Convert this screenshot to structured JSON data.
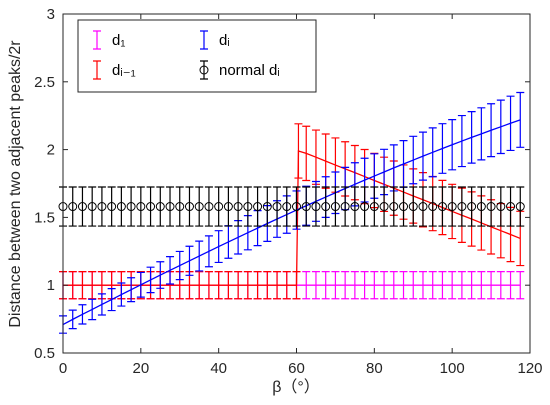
{
  "chart_data": {
    "type": "line",
    "xlabel": "β（°）",
    "ylabel": "Distance between two adjacent peaks/2r",
    "xlim": [
      0,
      120
    ],
    "ylim": [
      0.5,
      3
    ],
    "xticks": [
      "0",
      "20",
      "40",
      "60",
      "80",
      "100",
      "120"
    ],
    "yticks": [
      "0.5",
      "1",
      "1.5",
      "2",
      "2.5",
      "3"
    ],
    "grid": false,
    "legend": "top-left",
    "series": [
      {
        "name": "d₁",
        "color": "#ff00ff",
        "marker": "none",
        "x": [
          0,
          2.5,
          5,
          7.5,
          10,
          12.5,
          15,
          17.5,
          20,
          22.5,
          25,
          27.5,
          30,
          32.5,
          35,
          37.5,
          40,
          42.5,
          45,
          47.5,
          50,
          52.5,
          55,
          57.5,
          60,
          62.5,
          65,
          67.5,
          70,
          72.5,
          75,
          77.5,
          80,
          82.5,
          85,
          87.5,
          90,
          92.5,
          95,
          97.5,
          100,
          102.5,
          105,
          107.5,
          110,
          112.5,
          115,
          117.5
        ],
        "y": [
          1,
          1,
          1,
          1,
          1,
          1,
          1,
          1,
          1,
          1,
          1,
          1,
          1,
          1,
          1,
          1,
          1,
          1,
          1,
          1,
          1,
          1,
          1,
          1,
          1,
          1,
          1,
          1,
          1,
          1,
          1,
          1,
          1,
          1,
          1,
          1,
          1,
          1,
          1,
          1,
          1,
          1,
          1,
          1,
          1,
          1,
          1,
          1
        ],
        "err": [
          0.1,
          0.1,
          0.1,
          0.1,
          0.1,
          0.1,
          0.1,
          0.1,
          0.1,
          0.1,
          0.1,
          0.1,
          0.1,
          0.1,
          0.1,
          0.1,
          0.1,
          0.1,
          0.1,
          0.1,
          0.1,
          0.1,
          0.1,
          0.1,
          0.1,
          0.1,
          0.1,
          0.1,
          0.1,
          0.1,
          0.1,
          0.1,
          0.1,
          0.1,
          0.1,
          0.1,
          0.1,
          0.1,
          0.1,
          0.1,
          0.1,
          0.1,
          0.1,
          0.1,
          0.1,
          0.1,
          0.1,
          0.1
        ]
      },
      {
        "name": "dᵢ₋₁",
        "color": "#ff0000",
        "marker": "none",
        "x": [
          0,
          2.5,
          5,
          7.5,
          10,
          12.5,
          15,
          17.5,
          20,
          22.5,
          25,
          27.5,
          30,
          32.5,
          35,
          37.5,
          40,
          42.5,
          45,
          47.5,
          50,
          52.5,
          55,
          57.5,
          60,
          60.5,
          62.5,
          65,
          67.5,
          70,
          72.5,
          75,
          77.5,
          80,
          82.5,
          85,
          87.5,
          90,
          92.5,
          95,
          97.5,
          100,
          102.5,
          105,
          107.5,
          110,
          112.5,
          115,
          117.5
        ],
        "y": [
          1,
          1,
          1,
          1,
          1,
          1,
          1,
          1,
          1,
          1,
          1,
          1,
          1,
          1,
          1,
          1,
          1,
          1,
          1,
          1,
          1,
          1,
          1,
          1,
          1,
          1.99,
          1.972,
          1.944,
          1.915,
          1.886,
          1.858,
          1.83,
          1.801,
          1.772,
          1.744,
          1.716,
          1.687,
          1.658,
          1.63,
          1.602,
          1.573,
          1.544,
          1.516,
          1.488,
          1.459,
          1.43,
          1.402,
          1.374,
          1.345
        ],
        "err": [
          0.1,
          0.1,
          0.1,
          0.1,
          0.1,
          0.1,
          0.1,
          0.1,
          0.1,
          0.1,
          0.1,
          0.1,
          0.1,
          0.1,
          0.1,
          0.1,
          0.1,
          0.1,
          0.1,
          0.1,
          0.1,
          0.1,
          0.1,
          0.1,
          0.1,
          0.2,
          0.2,
          0.2,
          0.2,
          0.2,
          0.2,
          0.2,
          0.2,
          0.2,
          0.2,
          0.2,
          0.2,
          0.2,
          0.2,
          0.2,
          0.2,
          0.2,
          0.2,
          0.2,
          0.2,
          0.2,
          0.2,
          0.2,
          0.2
        ]
      },
      {
        "name": "dᵢ",
        "color": "#0000ff",
        "marker": "none",
        "x": [
          0,
          2.5,
          5,
          7.5,
          10,
          12.5,
          15,
          17.5,
          20,
          22.5,
          25,
          27.5,
          30,
          32.5,
          35,
          37.5,
          40,
          42.5,
          45,
          47.5,
          50,
          52.5,
          55,
          57.5,
          60,
          62.5,
          65,
          67.5,
          70,
          72.5,
          75,
          77.5,
          80,
          82.5,
          85,
          87.5,
          90,
          92.5,
          95,
          97.5,
          100,
          102.5,
          105,
          107.5,
          110,
          112.5,
          115,
          117.5
        ],
        "y": [
          0.71,
          0.748,
          0.785,
          0.821,
          0.858,
          0.894,
          0.931,
          0.967,
          1.003,
          1.039,
          1.075,
          1.11,
          1.145,
          1.18,
          1.215,
          1.25,
          1.285,
          1.319,
          1.353,
          1.387,
          1.421,
          1.455,
          1.488,
          1.521,
          1.554,
          1.586,
          1.618,
          1.65,
          1.682,
          1.713,
          1.744,
          1.775,
          1.805,
          1.835,
          1.865,
          1.894,
          1.923,
          1.952,
          1.98,
          2.008,
          2.036,
          2.063,
          2.09,
          2.116,
          2.143,
          2.168,
          2.194,
          2.219
        ],
        "err": [
          0.064,
          0.068,
          0.071,
          0.075,
          0.078,
          0.081,
          0.085,
          0.088,
          0.091,
          0.094,
          0.098,
          0.101,
          0.104,
          0.107,
          0.11,
          0.114,
          0.117,
          0.12,
          0.123,
          0.126,
          0.129,
          0.132,
          0.135,
          0.138,
          0.141,
          0.144,
          0.147,
          0.15,
          0.153,
          0.156,
          0.159,
          0.161,
          0.164,
          0.167,
          0.17,
          0.172,
          0.175,
          0.177,
          0.18,
          0.183,
          0.185,
          0.188,
          0.19,
          0.192,
          0.195,
          0.197,
          0.2,
          0.202
        ]
      },
      {
        "name": "normal dᵢ",
        "color": "#000000",
        "marker": "circle",
        "x": [
          0,
          2.5,
          5,
          7.5,
          10,
          12.5,
          15,
          17.5,
          20,
          22.5,
          25,
          27.5,
          30,
          32.5,
          35,
          37.5,
          40,
          42.5,
          45,
          47.5,
          50,
          52.5,
          55,
          57.5,
          60,
          62.5,
          65,
          67.5,
          70,
          72.5,
          75,
          77.5,
          80,
          82.5,
          85,
          87.5,
          90,
          92.5,
          95,
          97.5,
          100,
          102.5,
          105,
          107.5,
          110,
          112.5,
          115,
          117.5
        ],
        "y": [
          1.58,
          1.58,
          1.58,
          1.58,
          1.58,
          1.58,
          1.58,
          1.58,
          1.58,
          1.58,
          1.58,
          1.58,
          1.58,
          1.58,
          1.58,
          1.58,
          1.58,
          1.58,
          1.58,
          1.58,
          1.58,
          1.58,
          1.58,
          1.58,
          1.58,
          1.58,
          1.58,
          1.58,
          1.58,
          1.58,
          1.58,
          1.58,
          1.58,
          1.58,
          1.58,
          1.58,
          1.58,
          1.58,
          1.58,
          1.58,
          1.58,
          1.58,
          1.58,
          1.58,
          1.58,
          1.58,
          1.58,
          1.58
        ],
        "err": [
          0.144,
          0.144,
          0.144,
          0.144,
          0.144,
          0.144,
          0.144,
          0.144,
          0.144,
          0.144,
          0.144,
          0.144,
          0.144,
          0.144,
          0.144,
          0.144,
          0.144,
          0.144,
          0.144,
          0.144,
          0.144,
          0.144,
          0.144,
          0.144,
          0.144,
          0.144,
          0.144,
          0.144,
          0.144,
          0.144,
          0.144,
          0.144,
          0.144,
          0.144,
          0.144,
          0.144,
          0.144,
          0.144,
          0.144,
          0.144,
          0.144,
          0.144,
          0.144,
          0.144,
          0.144,
          0.144,
          0.144,
          0.144
        ]
      }
    ]
  }
}
